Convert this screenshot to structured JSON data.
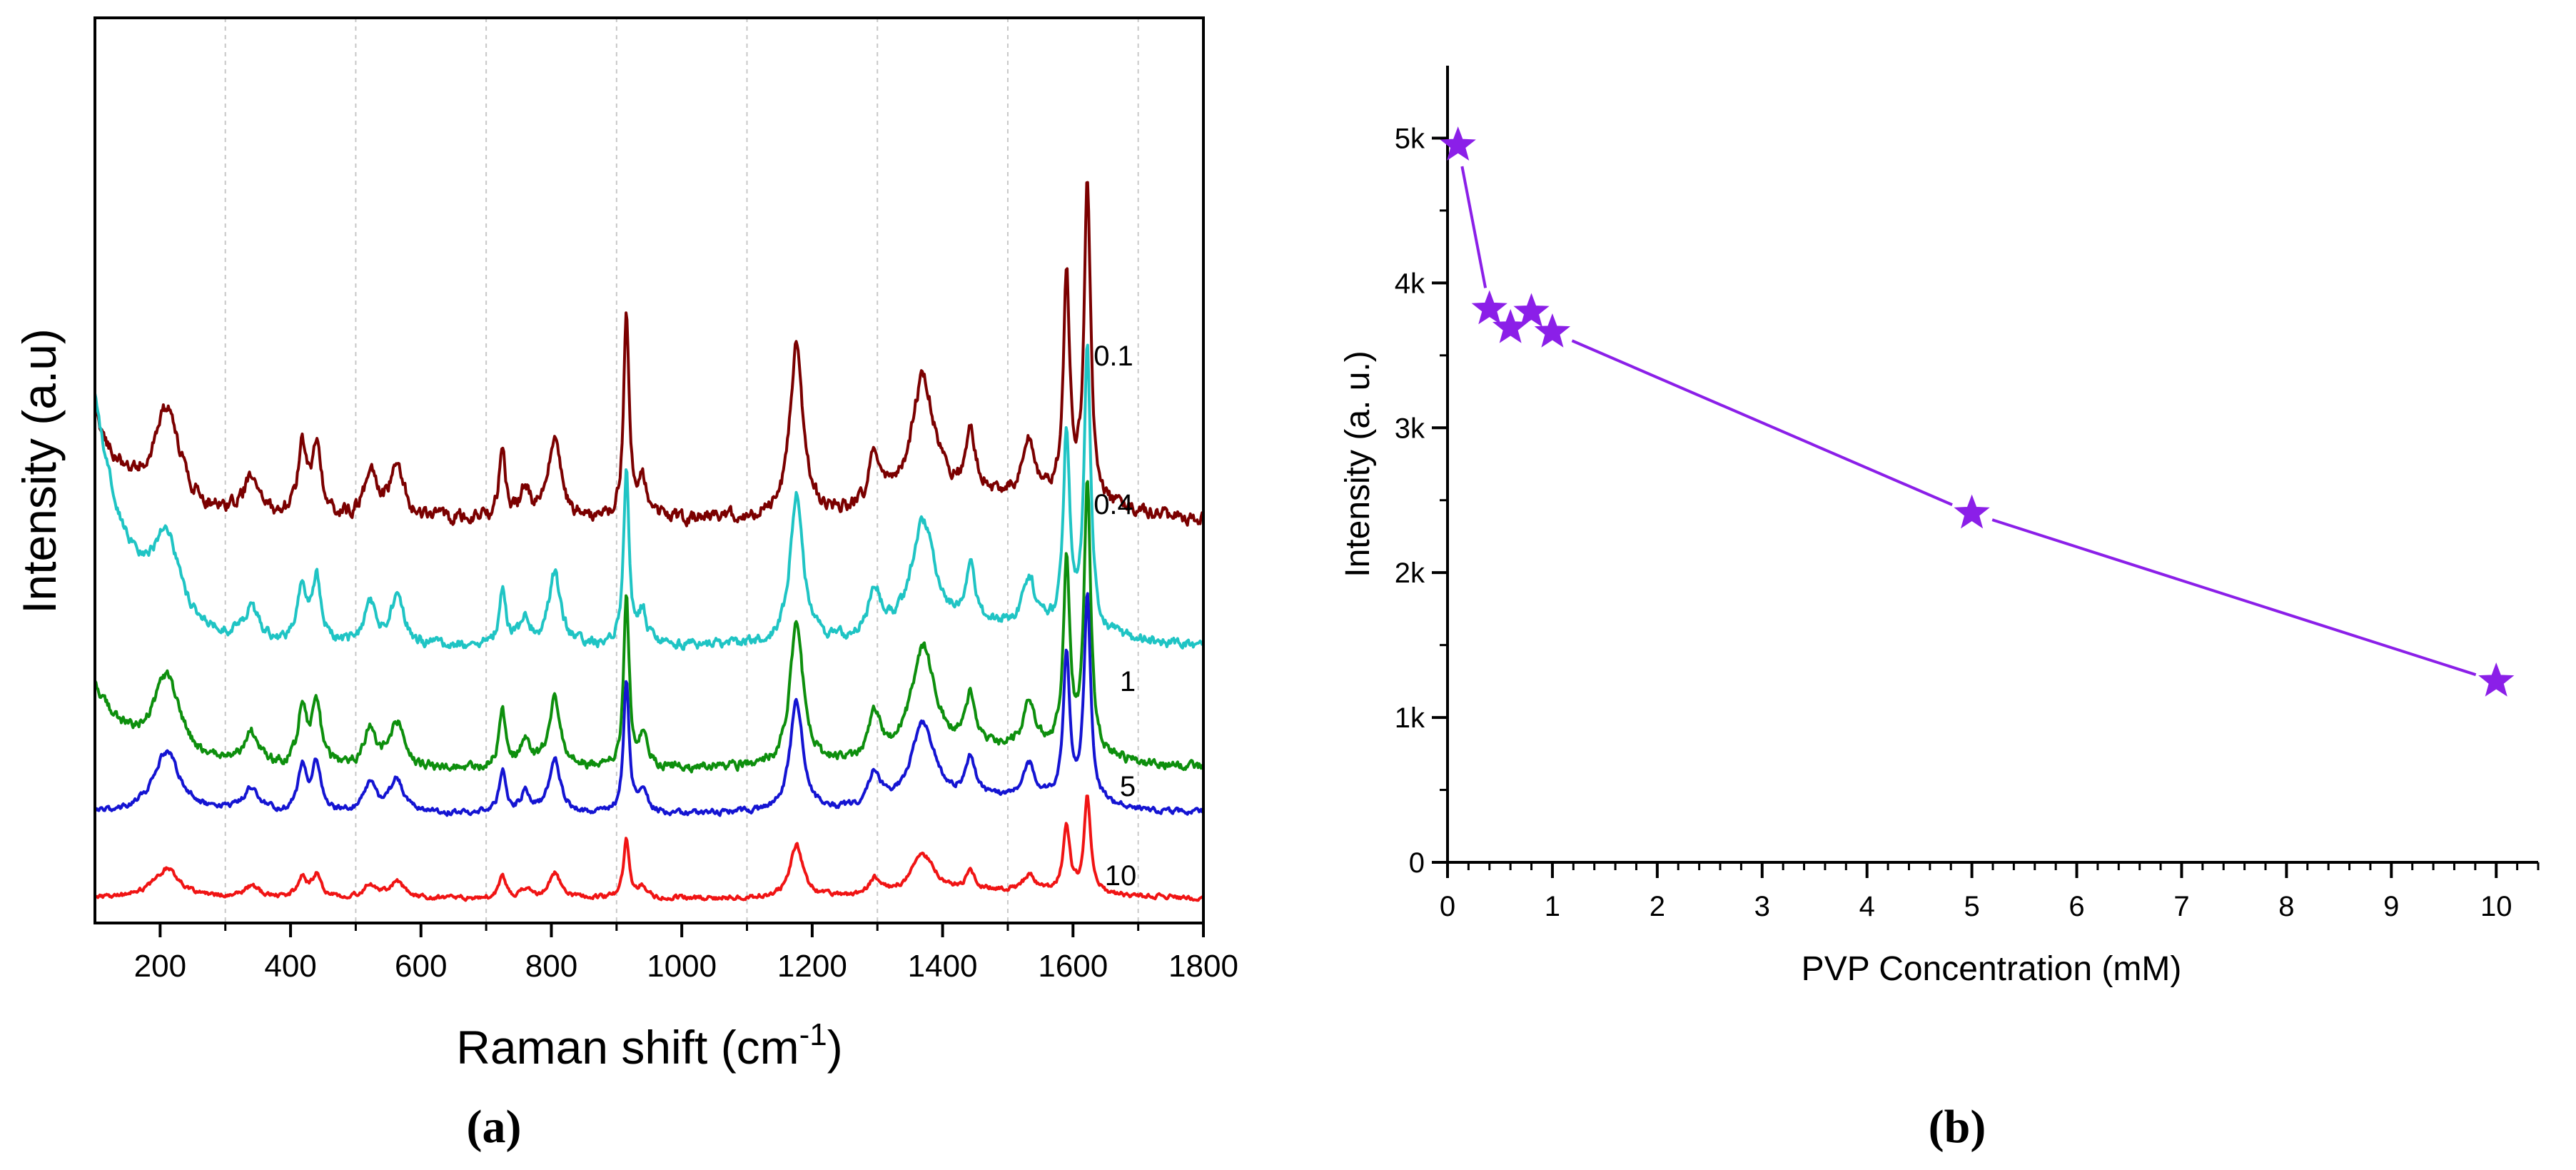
{
  "figure": {
    "panel_a_label": "(a)",
    "panel_b_label": "(b)"
  },
  "chart_data": [
    {
      "type": "line",
      "panel": "a",
      "xlabel": "Raman shift (cm",
      "xlabel_sup": "-1",
      "xlabel_close": ")",
      "ylabel": "Intensity (a.u)",
      "xlim": [
        100,
        1800
      ],
      "x_ticks": [
        200,
        400,
        600,
        800,
        1000,
        1200,
        1400,
        1600,
        1800
      ],
      "x_minor_ticks": [
        300,
        500,
        700,
        900,
        1100,
        1300,
        1500,
        1700
      ],
      "vertical_gridlines": [
        300,
        500,
        700,
        900,
        1100,
        1300,
        1500,
        1700
      ],
      "y_scale": "arbitrary offset (stacked spectra)",
      "peaks": [
        {
          "x": 210,
          "w": 25,
          "h": 0.13
        },
        {
          "x": 340,
          "w": 15,
          "h": 0.05
        },
        {
          "x": 418,
          "w": 8,
          "h": 0.09
        },
        {
          "x": 440,
          "w": 8,
          "h": 0.1
        },
        {
          "x": 522,
          "w": 11,
          "h": 0.06
        },
        {
          "x": 563,
          "w": 13,
          "h": 0.07
        },
        {
          "x": 725,
          "w": 6,
          "h": 0.09
        },
        {
          "x": 760,
          "w": 9,
          "h": 0.04
        },
        {
          "x": 805,
          "w": 11,
          "h": 0.11
        },
        {
          "x": 915,
          "w": 5,
          "h": 0.27
        },
        {
          "x": 940,
          "w": 8,
          "h": 0.05
        },
        {
          "x": 1176,
          "w": 12,
          "h": 0.23
        },
        {
          "x": 1296,
          "w": 11,
          "h": 0.07
        },
        {
          "x": 1370,
          "w": 22,
          "h": 0.17
        },
        {
          "x": 1443,
          "w": 9,
          "h": 0.08
        },
        {
          "x": 1533,
          "w": 11,
          "h": 0.07
        },
        {
          "x": 1590,
          "w": 6,
          "h": 0.3
        },
        {
          "x": 1622,
          "w": 6,
          "h": 0.43
        }
      ],
      "series": [
        {
          "name": "0.1",
          "color": "#7b0000",
          "offset": 0.445,
          "scale": 0.82,
          "start": 0.135,
          "sigma": 0.012
        },
        {
          "name": "0.4",
          "color": "#1fc4c4",
          "offset": 0.305,
          "scale": 0.72,
          "start": 0.38,
          "sigma": 0.009
        },
        {
          "name": "1",
          "color": "#0d8f0d",
          "offset": 0.17,
          "scale": 0.7,
          "start": 0.13,
          "sigma": 0.008
        },
        {
          "name": "5",
          "color": "#1414d2",
          "offset": 0.12,
          "scale": 0.53,
          "start": 0.0,
          "sigma": 0.005
        },
        {
          "name": "10",
          "color": "#f01414",
          "offset": 0.027,
          "scale": 0.25,
          "start": 0.0,
          "sigma": 0.004
        }
      ]
    },
    {
      "type": "line",
      "panel": "b",
      "xlabel": "PVP Concentration (mM)",
      "ylabel": "Intensity (a. u.)",
      "xlim": [
        0,
        10.4
      ],
      "ylim": [
        0,
        5500
      ],
      "x_ticks": [
        0,
        1,
        2,
        3,
        4,
        5,
        6,
        7,
        8,
        9,
        10
      ],
      "y_ticks": [
        0,
        1000,
        2000,
        3000,
        4000,
        5000
      ],
      "y_tick_labels": [
        "0",
        "1k",
        "2k",
        "3k",
        "4k",
        "5k"
      ],
      "marker": "star",
      "color": "#8b1fe8",
      "x": [
        0.1,
        0.4,
        0.6,
        0.8,
        1,
        5,
        10
      ],
      "y": [
        4950,
        3820,
        3690,
        3800,
        3660,
        2410,
        1250
      ]
    }
  ]
}
